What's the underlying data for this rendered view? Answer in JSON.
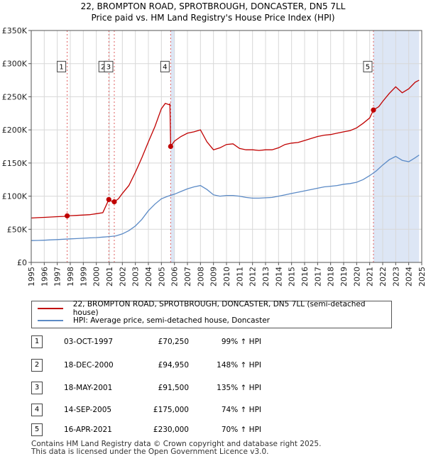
{
  "title": {
    "line1": "22, BROMPTON ROAD, SPROTBROUGH, DONCASTER, DN5 7LL",
    "line2": "Price paid vs. HM Land Registry's House Price Index (HPI)"
  },
  "legend": {
    "property_label": "22, BROMPTON ROAD, SPROTBROUGH, DONCASTER, DN5 7LL (semi-detached house)",
    "hpi_label": "HPI: Average price, semi-detached house, Doncaster"
  },
  "transactions": [
    {
      "num": "1",
      "date": "03-OCT-1997",
      "price": "£70,250",
      "hpi": "99% ↑ HPI"
    },
    {
      "num": "2",
      "date": "18-DEC-2000",
      "price": "£94,950",
      "hpi": "148% ↑ HPI"
    },
    {
      "num": "3",
      "date": "18-MAY-2001",
      "price": "£91,500",
      "hpi": "135% ↑ HPI"
    },
    {
      "num": "4",
      "date": "14-SEP-2005",
      "price": "£175,000",
      "hpi": "74% ↑ HPI"
    },
    {
      "num": "5",
      "date": "16-APR-2021",
      "price": "£230,000",
      "hpi": "70% ↑ HPI"
    }
  ],
  "footer": {
    "line1": "Contains HM Land Registry data © Crown copyright and database right 2025.",
    "line2": "This data is licensed under the Open Government Licence v3.0."
  },
  "chart_data": {
    "type": "line",
    "xlim": [
      1995,
      2025
    ],
    "ylim": [
      0,
      350000
    ],
    "ytick_values": [
      0,
      50000,
      100000,
      150000,
      200000,
      250000,
      300000,
      350000
    ],
    "ytick_labels": [
      "£0",
      "£50K",
      "£100K",
      "£150K",
      "£200K",
      "£250K",
      "£300K",
      "£350K"
    ],
    "xtick_labels": [
      "1995",
      "1996",
      "1997",
      "1998",
      "1999",
      "2000",
      "2001",
      "2002",
      "2003",
      "2004",
      "2005",
      "2006",
      "2007",
      "2008",
      "2009",
      "2010",
      "2011",
      "2012",
      "2013",
      "2014",
      "2015",
      "2016",
      "2017",
      "2018",
      "2019",
      "2020",
      "2021",
      "2022",
      "2023",
      "2024",
      "2025"
    ],
    "colors": {
      "property": "#c00000",
      "hpi": "#5b8ac6",
      "marker_line": "#e06060",
      "shade": "#dde6f5",
      "grid": "#d8d8d8"
    },
    "series": [
      {
        "name": "22, BROMPTON ROAD, SPROTBROUGH, DONCASTER, DN5 7LL (semi-detached house)",
        "x": [
          1995.0,
          1995.5,
          1996.0,
          1996.5,
          1997.0,
          1997.5,
          1997.76,
          1998.0,
          1998.5,
          1999.0,
          1999.5,
          2000.0,
          2000.5,
          2000.96,
          2001.1,
          2001.38,
          2001.7,
          2002.0,
          2002.5,
          2003.0,
          2003.5,
          2004.0,
          2004.5,
          2005.0,
          2005.3,
          2005.6,
          2005.65,
          2005.71,
          2006.0,
          2006.5,
          2007.0,
          2007.5,
          2008.0,
          2008.5,
          2009.0,
          2009.5,
          2010.0,
          2010.5,
          2011.0,
          2011.5,
          2012.0,
          2012.5,
          2013.0,
          2013.5,
          2014.0,
          2014.5,
          2015.0,
          2015.5,
          2016.0,
          2016.5,
          2017.0,
          2017.5,
          2018.0,
          2018.5,
          2019.0,
          2019.5,
          2020.0,
          2020.5,
          2021.0,
          2021.29,
          2021.7,
          2022.0,
          2022.5,
          2023.0,
          2023.5,
          2024.0,
          2024.5,
          2024.8
        ],
        "values": [
          67000,
          67500,
          68000,
          68500,
          69000,
          69500,
          70250,
          70500,
          71000,
          71500,
          72000,
          73500,
          75000,
          94950,
          93000,
          91500,
          96000,
          104000,
          116000,
          136000,
          158000,
          182000,
          205000,
          232000,
          240000,
          238000,
          239000,
          175000,
          183000,
          190000,
          195000,
          197000,
          200000,
          182000,
          170000,
          173000,
          178000,
          179000,
          172000,
          170000,
          170000,
          169000,
          170000,
          170000,
          173000,
          178000,
          180000,
          181000,
          184000,
          187000,
          190000,
          192000,
          193000,
          195000,
          197000,
          199000,
          203000,
          210000,
          218000,
          230000,
          235000,
          243000,
          255000,
          265000,
          256000,
          262000,
          272000,
          275000
        ]
      },
      {
        "name": "HPI: Average price, semi-detached house, Doncaster",
        "x": [
          1995.0,
          1995.5,
          1996.0,
          1996.5,
          1997.0,
          1997.5,
          1998.0,
          1998.5,
          1999.0,
          1999.5,
          2000.0,
          2000.5,
          2001.0,
          2001.5,
          2002.0,
          2002.5,
          2003.0,
          2003.5,
          2004.0,
          2004.5,
          2005.0,
          2005.5,
          2006.0,
          2006.5,
          2007.0,
          2007.5,
          2008.0,
          2008.5,
          2009.0,
          2009.5,
          2010.0,
          2010.5,
          2011.0,
          2011.5,
          2012.0,
          2012.5,
          2013.0,
          2013.5,
          2014.0,
          2014.5,
          2015.0,
          2015.5,
          2016.0,
          2016.5,
          2017.0,
          2017.5,
          2018.0,
          2018.5,
          2019.0,
          2019.5,
          2020.0,
          2020.5,
          2021.0,
          2021.5,
          2022.0,
          2022.5,
          2023.0,
          2023.5,
          2024.0,
          2024.5,
          2024.8
        ],
        "values": [
          33000,
          33200,
          33500,
          34000,
          34500,
          35000,
          35500,
          36000,
          36500,
          37000,
          37500,
          38200,
          39000,
          40000,
          43000,
          48000,
          55000,
          65000,
          78000,
          88000,
          96000,
          100000,
          103000,
          107000,
          111000,
          114000,
          116000,
          110000,
          102000,
          100000,
          101000,
          101000,
          100000,
          98000,
          97000,
          97000,
          97500,
          98000,
          100000,
          102000,
          104000,
          106000,
          108000,
          110000,
          112000,
          114000,
          115000,
          116000,
          118000,
          119000,
          121000,
          125000,
          131000,
          138000,
          147000,
          155000,
          160000,
          154000,
          152000,
          158000,
          162000
        ]
      }
    ],
    "sales": [
      {
        "label": "1",
        "x": 1997.76,
        "value": 70250
      },
      {
        "label": "2",
        "x": 2000.96,
        "value": 94950
      },
      {
        "label": "3",
        "x": 2001.38,
        "value": 91500
      },
      {
        "label": "4",
        "x": 2005.71,
        "value": 175000
      },
      {
        "label": "5",
        "x": 2021.29,
        "value": 230000
      }
    ],
    "shaded_ranges": [
      [
        2005.71,
        2006.0
      ],
      [
        2021.29,
        2024.8
      ]
    ],
    "box_value": 295000
  }
}
